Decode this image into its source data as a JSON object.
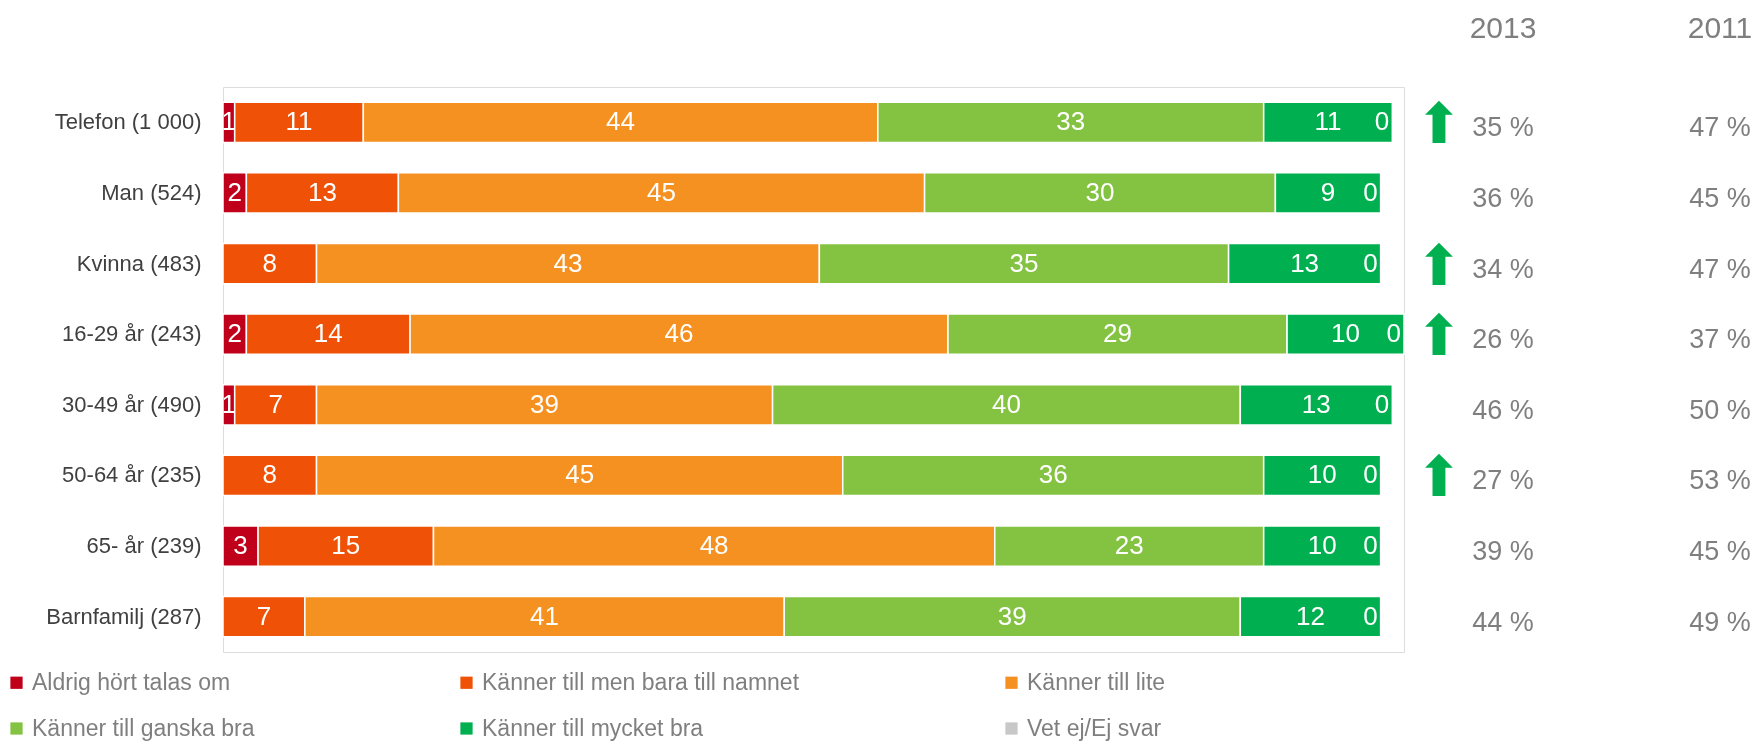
{
  "chart_data": [
    {
      "type": "bar",
      "orientation": "horizontal",
      "stacked": true,
      "legend": "bottom left",
      "tick_labels": "y",
      "xlim": [
        0,
        101
      ],
      "categories": [
        "Telefon (1 000)",
        "Man (524)",
        "Kvinna (483)",
        "16-29 år (243)",
        "30-49 år (490)",
        "50-64 år (235)",
        "65- år (239)",
        "Barnfamilj (287)"
      ],
      "series": [
        {
          "name": "Aldrig hört talas om",
          "color": "#c0001a",
          "values": [
            1,
            2,
            0,
            2,
            1,
            0,
            3,
            0
          ],
          "value_labels": [
            "1",
            "2",
            null,
            "2",
            "1",
            null,
            "3",
            null
          ]
        },
        {
          "name": "Känner till men bara till namnet",
          "color": "#ef5206",
          "values": [
            11,
            13,
            8,
            14,
            7,
            8,
            15,
            7
          ],
          "value_labels": [
            "11",
            "13",
            "8",
            "14",
            "7",
            "8",
            "15",
            "7"
          ]
        },
        {
          "name": "Känner till lite",
          "color": "#f59120",
          "values": [
            44,
            45,
            43,
            46,
            39,
            45,
            48,
            41
          ],
          "value_labels": [
            "44",
            "45",
            "43",
            "46",
            "39",
            "45",
            "48",
            "41"
          ]
        },
        {
          "name": "Känner till ganska bra",
          "color": "#84c341",
          "values": [
            33,
            30,
            35,
            29,
            40,
            36,
            23,
            39
          ],
          "value_labels": [
            "33",
            "30",
            "35",
            "29",
            "40",
            "36",
            "23",
            "39"
          ]
        },
        {
          "name": "Känner till mycket bra",
          "color": "#00b050",
          "values": [
            11,
            9,
            13,
            10,
            13,
            10,
            10,
            12
          ],
          "value_labels": [
            "11",
            "9",
            "13",
            "10",
            "13",
            "10",
            "10",
            "12"
          ]
        },
        {
          "name": "Vet ej/Ej svar",
          "color": "#c8c8c8",
          "values": [
            0,
            0,
            0,
            0,
            0,
            0,
            0,
            0
          ],
          "value_labels": [
            "0",
            "0",
            "0",
            "0",
            "0",
            "0",
            "0",
            "0"
          ]
        }
      ]
    },
    {
      "type": "other",
      "categories": [
        null,
        "2013",
        "2011"
      ],
      "cell_labels": [
        [
          "⬆",
          "35 %",
          "47 %"
        ],
        [
          null,
          "36 %",
          "45 %"
        ],
        [
          "⬆",
          "34 %",
          "47 %"
        ],
        [
          "⬆",
          "26 %",
          "37 %"
        ],
        [
          null,
          "46 %",
          "50 %"
        ],
        [
          "⬆",
          "27 %",
          "53 %"
        ],
        [
          null,
          "39 %",
          "45 %"
        ],
        [
          null,
          "44 %",
          "49 %"
        ]
      ]
    }
  ]
}
